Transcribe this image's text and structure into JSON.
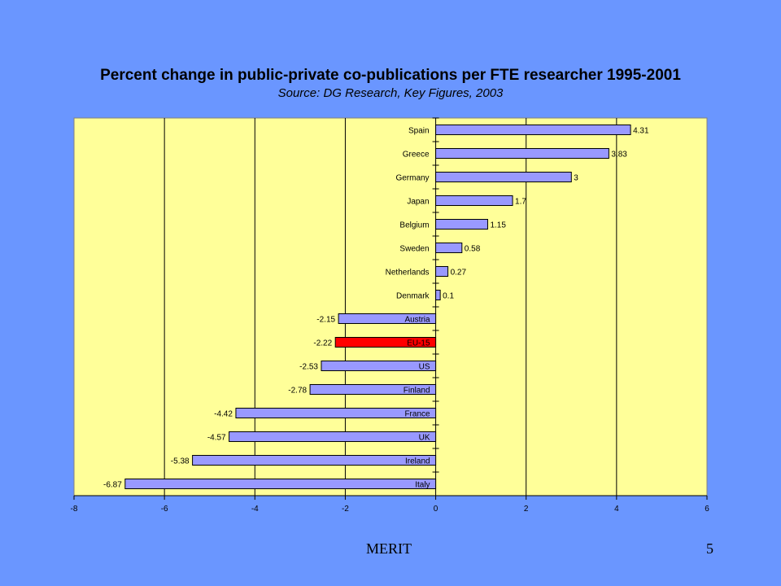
{
  "chart_data": {
    "type": "bar",
    "orientation": "horizontal",
    "title": "Percent change in public-private co-publications per FTE researcher 1995-2001",
    "subtitle": "Source: DG Research, Key Figures, 2003",
    "categories": [
      "Spain",
      "Greece",
      "Germany",
      "Japan",
      "Belgium",
      "Sweden",
      "Netherlands",
      "Denmark",
      "Austria",
      "EU-15",
      "US",
      "Finland",
      "France",
      "UK",
      "Ireland",
      "Italy"
    ],
    "values": [
      4.31,
      3.83,
      3,
      1.7,
      1.15,
      0.58,
      0.27,
      0.1,
      -2.15,
      -2.22,
      -2.53,
      -2.78,
      -4.42,
      -4.57,
      -5.38,
      -6.87
    ],
    "value_labels": [
      "4.31",
      "3.83",
      "3",
      "1.7",
      "1.15",
      "0.58",
      "0.27",
      "0.1",
      "-2.15",
      "-2.22",
      "-2.53",
      "-2.78",
      "-4.42",
      "-4.57",
      "-5.38",
      "-6.87"
    ],
    "xlim": [
      -8,
      6
    ],
    "x_ticks": [
      -8,
      -6,
      -4,
      -2,
      0,
      2,
      4,
      6
    ],
    "x_tick_labels": [
      "-8",
      "-6",
      "-4",
      "-2",
      "0",
      "2",
      "4",
      "6"
    ],
    "grid": "vertical",
    "highlight_category": "EU-15",
    "colors": {
      "background": "#6a96ff",
      "plot_area": "#ffff99",
      "bar": "#9999ff",
      "highlight_bar": "#ff0000",
      "grid": "#000000"
    }
  },
  "footer": {
    "left": "MERIT",
    "right": "5"
  }
}
